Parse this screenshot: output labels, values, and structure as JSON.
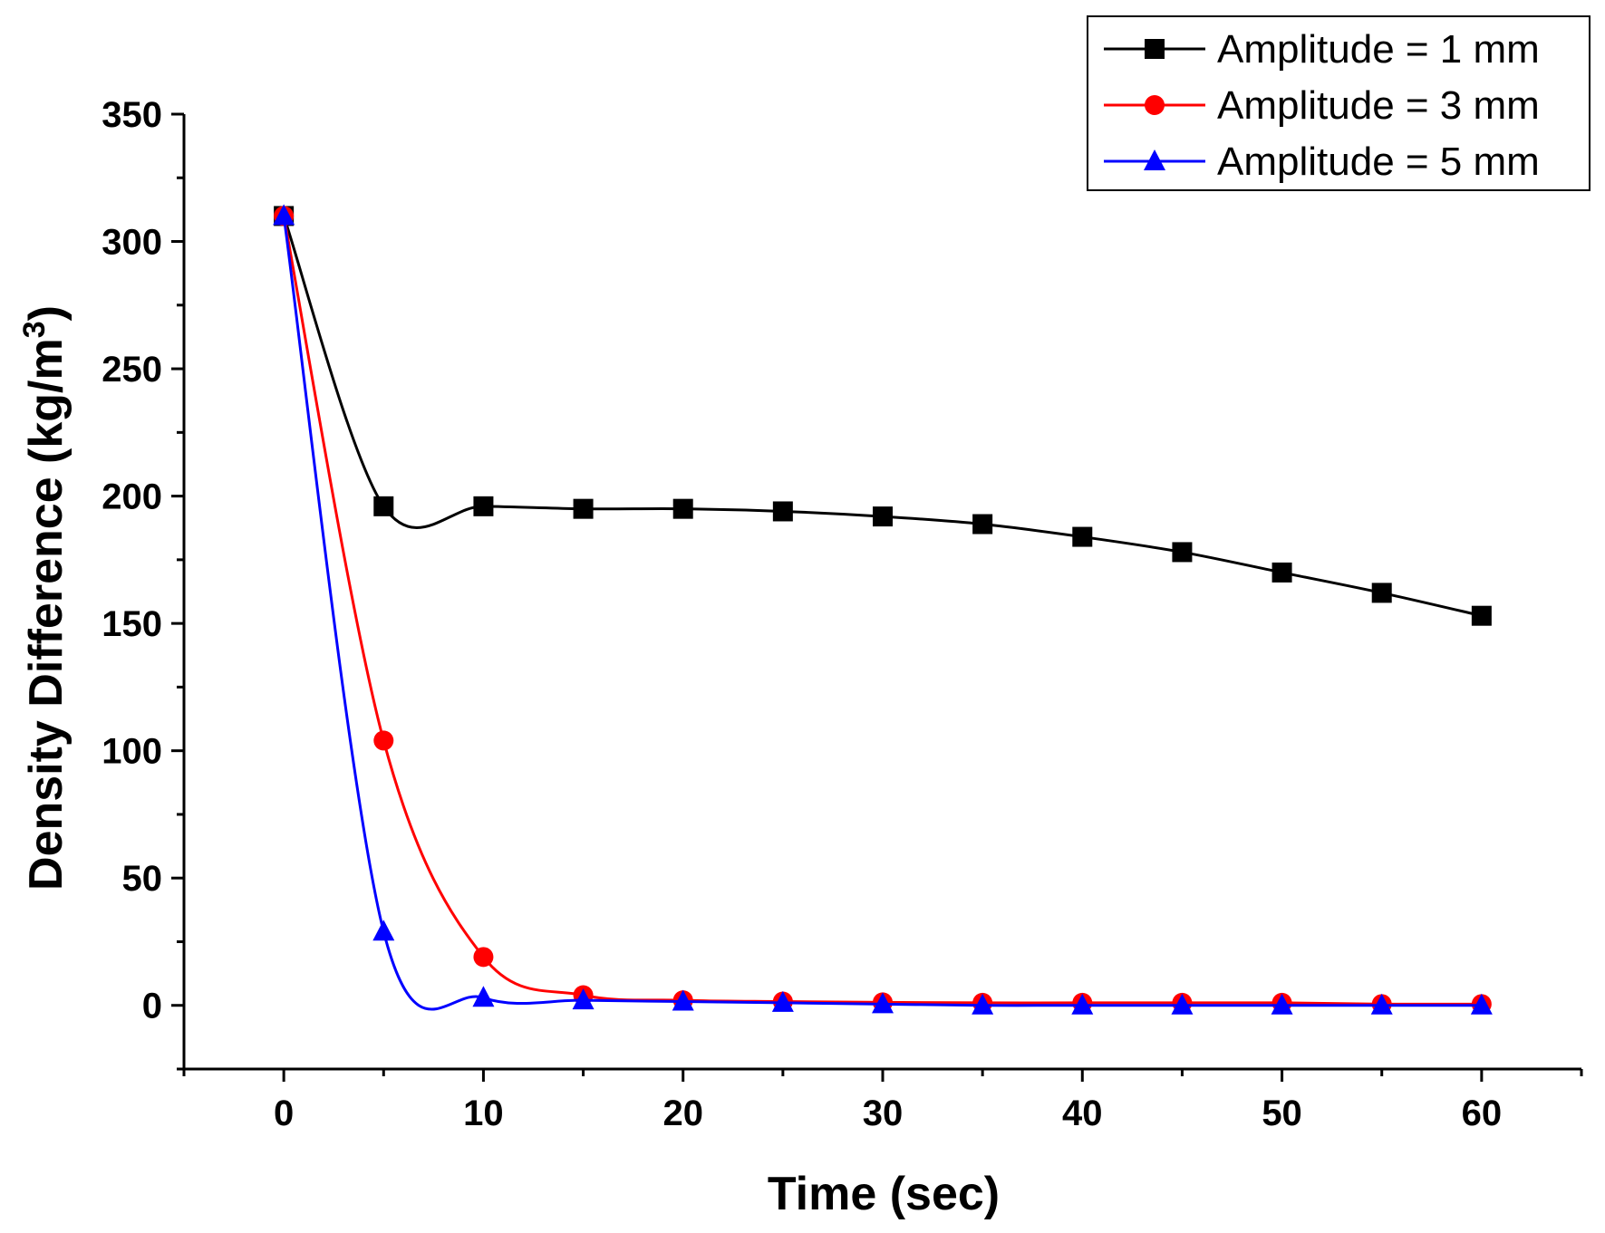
{
  "chart_data": {
    "type": "line",
    "title": "",
    "xlabel": "Time (sec)",
    "ylabel": "Density Difference (kg/m",
    "ylabel_superscript": "3",
    "ylabel_suffix": ")",
    "xlim": [
      -5,
      65
    ],
    "ylim": [
      -25,
      350
    ],
    "xticks": [
      0,
      10,
      20,
      30,
      40,
      50,
      60
    ],
    "yticks": [
      0,
      50,
      100,
      150,
      200,
      250,
      300,
      350
    ],
    "x": [
      0,
      5,
      10,
      15,
      20,
      25,
      30,
      35,
      40,
      45,
      50,
      55,
      60
    ],
    "series": [
      {
        "name": "Amplitude = 1 mm",
        "color": "#000000",
        "marker": "square",
        "values": [
          310,
          196,
          196,
          195,
          195,
          194,
          192,
          189,
          184,
          178,
          170,
          162,
          153
        ]
      },
      {
        "name": "Amplitude = 3 mm",
        "color": "#ff0000",
        "marker": "circle",
        "values": [
          310,
          104,
          19,
          4,
          2,
          1.5,
          1.2,
          1,
          1,
          1,
          1,
          0.5,
          0.5
        ]
      },
      {
        "name": "Amplitude = 5 mm",
        "color": "#0000ff",
        "marker": "triangle",
        "values": [
          310,
          29,
          3,
          2,
          1.5,
          1,
          0.5,
          0,
          0,
          0,
          0,
          0,
          0
        ]
      }
    ],
    "legend_position": "top-right",
    "grid": false
  }
}
